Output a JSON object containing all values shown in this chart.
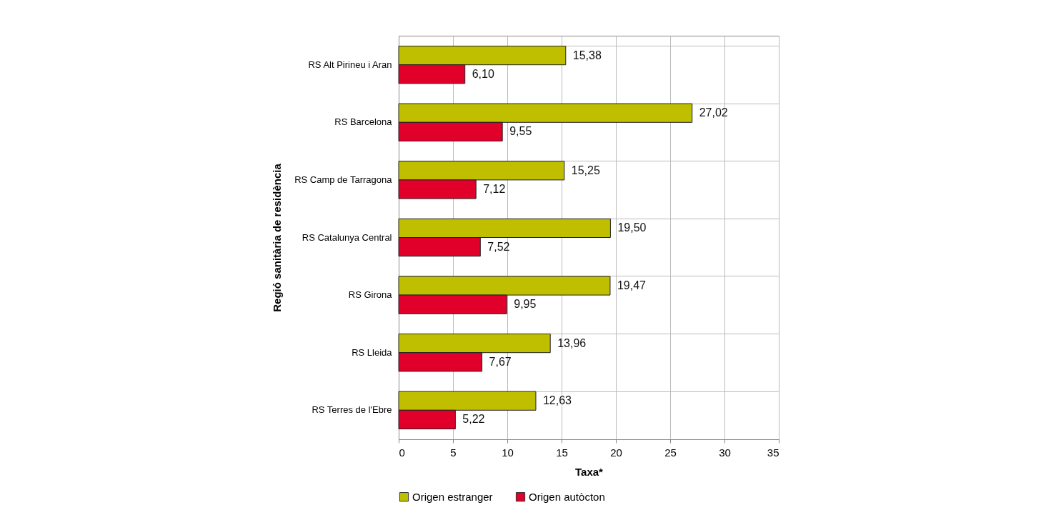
{
  "chart_data": {
    "type": "bar",
    "orientation": "horizontal",
    "xlabel": "Taxa*",
    "ylabel": "Regió sanitària de residència",
    "categories": [
      "RS Alt Pirineu i Aran",
      "RS Barcelona",
      "RS Camp de Tarragona",
      "RS Catalunya Central",
      "RS Girona",
      "RS Lleida",
      "RS Terres de l'Ebre"
    ],
    "series": [
      {
        "name": "Origen estranger",
        "color": "#bfbf00",
        "values": [
          15.38,
          27.02,
          15.25,
          19.5,
          19.47,
          13.96,
          12.63
        ],
        "value_labels": [
          "15,38",
          "27,02",
          "15,25",
          "19,50",
          "19,47",
          "13,96",
          "12,63"
        ]
      },
      {
        "name": "Origen autòcton",
        "color": "#e0002a",
        "values": [
          6.1,
          9.55,
          7.12,
          7.52,
          9.95,
          7.67,
          5.22
        ],
        "value_labels": [
          "6,10",
          "9,55",
          "7,12",
          "7,52",
          "9,95",
          "7,67",
          "5,22"
        ]
      }
    ],
    "xlim": [
      0,
      35
    ],
    "xticks": [
      0,
      5,
      10,
      15,
      20,
      25,
      30,
      35
    ],
    "grid": true,
    "legend": "bottom"
  }
}
